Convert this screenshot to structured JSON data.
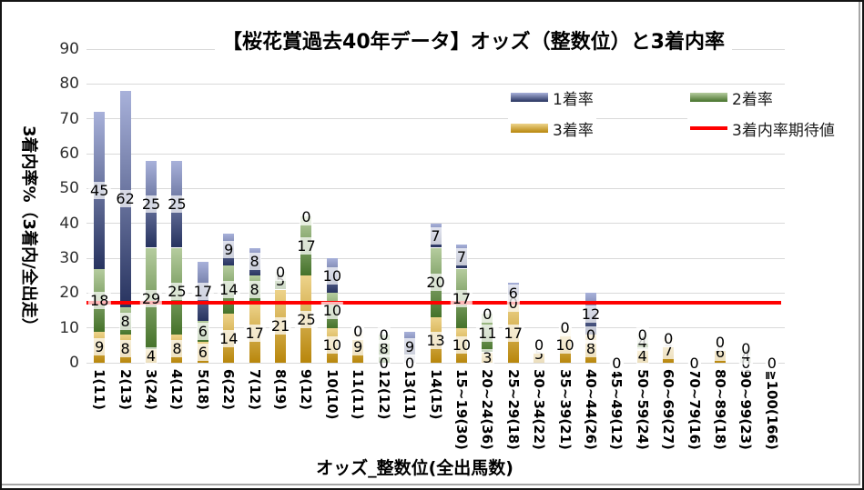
{
  "title": "【桜花賞過去40年データ】オッズ（整数位）と3着内率",
  "axes": {
    "y_title": "3着内率%（3着内/全出走）",
    "x_title": "オッズ_整数位(全出馬数)",
    "y_ticks": [
      0,
      10,
      20,
      30,
      40,
      50,
      60,
      70,
      80,
      90
    ]
  },
  "legend": {
    "items": [
      {
        "label": "1着率",
        "type": "box",
        "colors": [
          "#a8b1da",
          "#27335f"
        ]
      },
      {
        "label": "2着率",
        "type": "box",
        "colors": [
          "#b5cc9e",
          "#45722a"
        ]
      },
      {
        "label": "3着率",
        "type": "box",
        "colors": [
          "#edd38b",
          "#b8860b"
        ]
      },
      {
        "label": "3着内率期待値",
        "type": "line",
        "colors": [
          "#ff0000",
          "#ff0000"
        ]
      }
    ]
  },
  "chart_data": {
    "type": "bar",
    "subtype": "stacked",
    "title": "【桜花賞過去40年データ】オッズ（整数位）と3着内率",
    "xlabel": "オッズ_整数位(全出馬数)",
    "ylabel": "3着内率%（3着内/全出走）",
    "ylim": [
      0,
      90
    ],
    "grid": true,
    "legend_position": "top-right",
    "units": "percent",
    "categories": [
      "1(11)",
      "2(13)",
      "3(24)",
      "4(12)",
      "5(18)",
      "6(22)",
      "7(12)",
      "8(19)",
      "9(12)",
      "10(10)",
      "11(11)",
      "12(12)",
      "13(11)",
      "14(15)",
      "15~19(30)",
      "20~24(36)",
      "25~29(18)",
      "30~34(22)",
      "35~39(21)",
      "40~44(26)",
      "45~49(12)",
      "50~59(24)",
      "60~69(27)",
      "70~79(16)",
      "80~89(18)",
      "90~99(23)",
      "≧100(166)"
    ],
    "series": [
      {
        "name": "3着率",
        "key": "third-rate",
        "stack_order": "bottom",
        "colors": [
          "#edd38b",
          "#b8860b"
        ],
        "values": [
          9,
          8,
          4,
          8,
          6,
          14,
          17,
          21,
          25,
          10,
          9,
          0,
          0,
          13,
          10,
          3,
          17,
          5,
          10,
          8,
          0,
          4,
          7,
          0,
          6,
          0,
          0
        ]
      },
      {
        "name": "2着率",
        "key": "second-rate",
        "stack_order": "middle",
        "colors": [
          "#b5cc9e",
          "#45722a"
        ],
        "values": [
          18,
          8,
          29,
          25,
          6,
          14,
          8,
          5,
          17,
          10,
          0,
          8,
          0,
          20,
          17,
          11,
          0,
          0,
          0,
          0,
          0,
          4,
          0,
          0,
          0,
          4,
          0
        ]
      },
      {
        "name": "1着率",
        "key": "first-rate",
        "stack_order": "top",
        "colors": [
          "#a8b1da",
          "#27335f"
        ],
        "values": [
          45,
          62,
          25,
          25,
          17,
          9,
          8,
          0,
          0,
          10,
          0,
          0,
          9,
          7,
          7,
          0,
          6,
          0,
          0,
          12,
          0,
          0,
          0,
          0,
          0,
          0,
          0
        ]
      }
    ],
    "reference_line": {
      "name": "3着内率期待値",
      "value": 17.3,
      "color": "#ff0000"
    }
  }
}
